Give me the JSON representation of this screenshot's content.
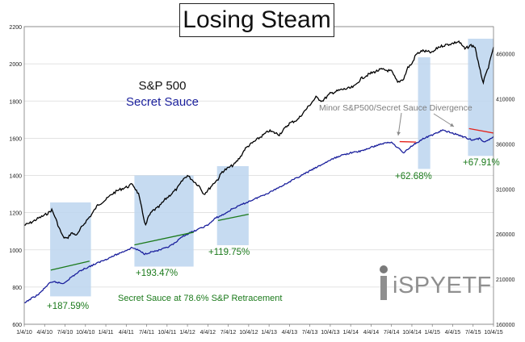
{
  "title": "Losing Steam",
  "legend": {
    "sp500": "S&P 500",
    "secret_sauce": "Secret Sauce"
  },
  "annotations": {
    "divergence": "Minor S&P500/Secret Sauce Divergence",
    "retracement": "Secret Sauce at 78.6% S&P Retracement",
    "gains": [
      "+187.59%",
      "+193.47%",
      "+119.75%",
      "+62.68%",
      "+67.91%"
    ]
  },
  "logo": {
    "text": "SPYETF",
    "prefix": "i"
  },
  "colors": {
    "sp500": "#000000",
    "secret_sauce": "#1a1f9c",
    "shading": "#bcd5ee",
    "green": "#1b7a1b",
    "red": "#e5231b",
    "grid": "#d9d9d9"
  },
  "chart_data": {
    "type": "line",
    "title": "Losing Steam",
    "x_tick_labels": [
      "1/4/10",
      "4/4/10",
      "7/4/10",
      "10/4/10",
      "1/4/11",
      "4/4/11",
      "7/4/11",
      "10/4/11",
      "1/4/12",
      "4/4/12",
      "7/4/12",
      "10/4/12",
      "1/4/13",
      "4/4/13",
      "7/4/13",
      "10/4/13",
      "1/4/14",
      "4/4/14",
      "7/4/14",
      "10/4/14",
      "1/4/15",
      "4/4/15",
      "7/4/15",
      "10/4/15"
    ],
    "y_left": {
      "ticks": [
        600,
        800,
        1000,
        1200,
        1400,
        1600,
        1800,
        2000,
        2200
      ],
      "ylim": [
        600,
        2200
      ]
    },
    "y_right": {
      "ticks": [
        160000,
        210000,
        260000,
        310000,
        360000,
        410000,
        460000
      ],
      "ylim": [
        160000,
        490000
      ]
    },
    "xlim": [
      0,
      23
    ],
    "series": [
      {
        "name": "S&P 500",
        "axis": "left",
        "x": [
          0,
          0.3,
          0.7,
          1,
          1.2,
          1.35,
          1.5,
          1.7,
          1.9,
          2.1,
          2.3,
          2.6,
          2.8,
          3.0,
          3.3,
          3.6,
          4.0,
          4.3,
          4.6,
          4.9,
          5.1,
          5.3,
          5.6,
          5.8,
          5.95,
          6.1,
          6.3,
          6.6,
          6.9,
          7.2,
          7.5,
          7.8,
          8.0,
          8.3,
          8.6,
          8.8,
          9.0,
          9.3,
          9.5,
          9.7,
          10.0,
          10.3,
          10.6,
          10.8,
          11.0,
          11.5,
          12.0,
          12.5,
          13.0,
          13.4,
          13.7,
          14.0,
          14.3,
          14.6,
          15.0,
          15.5,
          16.0,
          16.2,
          16.5,
          17.0,
          17.5,
          18.0,
          18.3,
          18.6,
          18.8,
          19.0,
          19.2,
          19.5,
          20.0,
          20.3,
          20.6,
          21.0,
          21.3,
          21.6,
          21.9,
          22.1,
          22.3,
          22.5,
          22.8,
          23.0
        ],
        "values": [
          1132,
          1145,
          1170,
          1186,
          1200,
          1215,
          1180,
          1120,
          1070,
          1060,
          1090,
          1080,
          1120,
          1150,
          1190,
          1240,
          1270,
          1300,
          1320,
          1333,
          1340,
          1355,
          1300,
          1200,
          1130,
          1180,
          1210,
          1230,
          1270,
          1300,
          1330,
          1380,
          1400,
          1370,
          1340,
          1300,
          1320,
          1360,
          1380,
          1420,
          1440,
          1460,
          1500,
          1540,
          1560,
          1600,
          1640,
          1620,
          1680,
          1700,
          1740,
          1780,
          1820,
          1800,
          1840,
          1860,
          1870,
          1880,
          1920,
          1950,
          1970,
          1960,
          1900,
          1920,
          1980,
          2000,
          2050,
          2070,
          2060,
          2090,
          2100,
          2110,
          2120,
          2080,
          2100,
          2090,
          1980,
          1900,
          2000,
          2090
        ]
      },
      {
        "name": "Secret Sauce",
        "axis": "right",
        "x": [
          0,
          0.3,
          0.7,
          1,
          1.2,
          1.5,
          1.9,
          2.3,
          2.8,
          3.3,
          3.8,
          4.3,
          4.8,
          5.3,
          5.6,
          5.9,
          6.2,
          6.6,
          7.0,
          7.4,
          7.8,
          8.2,
          8.6,
          9.0,
          9.4,
          9.8,
          10.2,
          10.6,
          11.0,
          11.5,
          12.0,
          12.5,
          13.0,
          13.5,
          14.0,
          14.5,
          15.0,
          15.5,
          16.0,
          16.5,
          17.0,
          17.5,
          18.0,
          18.3,
          18.6,
          19.0,
          19.5,
          20.0,
          20.5,
          21.0,
          21.5,
          22.0,
          22.3,
          22.6,
          23.0
        ],
        "values": [
          183000,
          188000,
          193000,
          200000,
          205000,
          207000,
          205000,
          212000,
          220000,
          225000,
          230000,
          235000,
          240000,
          245000,
          242000,
          238000,
          240000,
          242000,
          245000,
          250000,
          258000,
          262000,
          266000,
          270000,
          278000,
          282000,
          288000,
          292000,
          296000,
          301000,
          306000,
          312000,
          318000,
          324000,
          330000,
          336000,
          342000,
          347000,
          350000,
          352000,
          356000,
          360000,
          362000,
          356000,
          350000,
          358000,
          365000,
          370000,
          375000,
          372000,
          368000,
          364000,
          366000,
          362000,
          368000
        ]
      }
    ],
    "shaded_regions": [
      {
        "x": [
          1.27,
          3.27
        ],
        "y": [
          750,
          1255
        ]
      },
      {
        "x": [
          5.4,
          8.3
        ],
        "y": [
          910,
          1400
        ]
      },
      {
        "x": [
          9.45,
          11.0
        ],
        "y": [
          1025,
          1450
        ]
      },
      {
        "x": [
          19.3,
          19.9
        ],
        "y": [
          1435,
          2035
        ]
      },
      {
        "x": [
          21.75,
          23.0
        ],
        "y": [
          1505,
          2135
        ]
      }
    ]
  }
}
